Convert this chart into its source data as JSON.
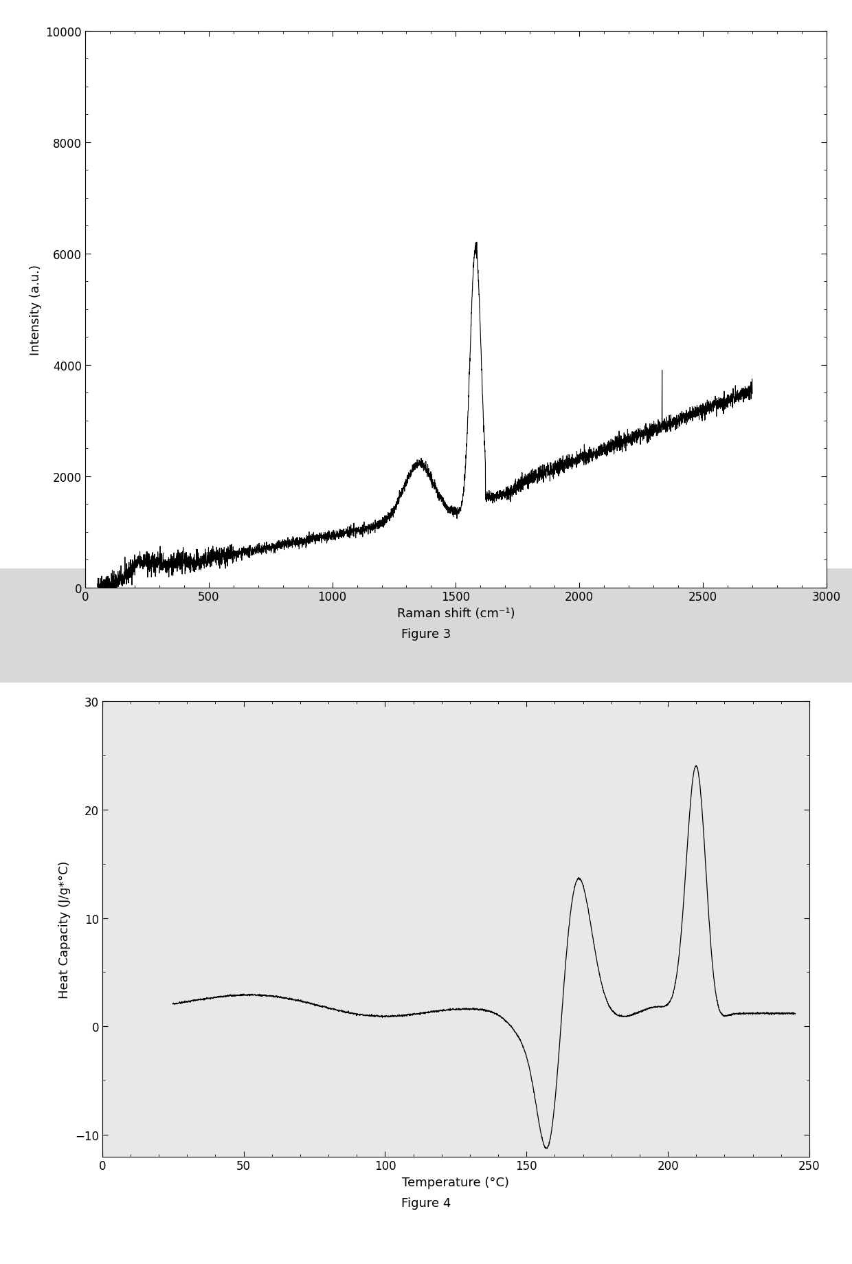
{
  "fig1": {
    "title": "Figure 3",
    "xlabel": "Raman shift (cm⁻¹)",
    "ylabel": "Intensity (a.u.)",
    "xlim": [
      0,
      3000
    ],
    "ylim": [
      0,
      10000
    ],
    "xticks": [
      0,
      500,
      1000,
      1500,
      2000,
      2500,
      3000
    ],
    "yticks": [
      0,
      2000,
      4000,
      6000,
      8000,
      10000
    ],
    "line_color": "#000000",
    "line_width": 0.8,
    "background": "#ffffff"
  },
  "fig2": {
    "title": "Figure 4",
    "xlabel": "Temperature (°C)",
    "ylabel": "Heat Capacity (J/g*°C)",
    "xlim": [
      0,
      250
    ],
    "ylim": [
      -12,
      30
    ],
    "xticks": [
      0,
      50,
      100,
      150,
      200,
      250
    ],
    "yticks": [
      -10,
      0,
      10,
      20,
      30
    ],
    "line_color": "#000000",
    "line_width": 0.9,
    "background": "#ffffff"
  },
  "fig_width": 12.4,
  "fig_height": 18.4,
  "dpi": 100
}
